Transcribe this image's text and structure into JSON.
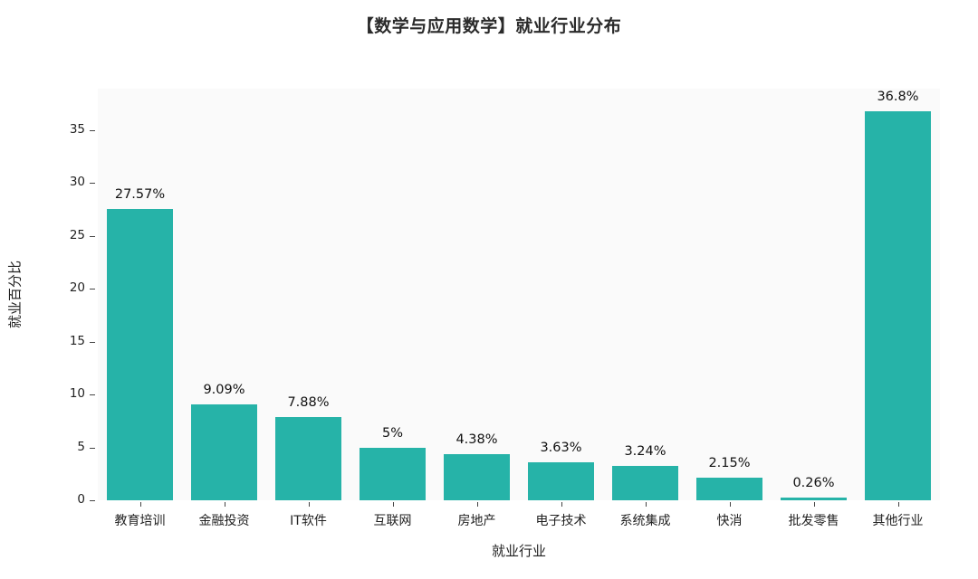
{
  "chart_data": {
    "type": "bar",
    "title": "【数学与应用数学】就业行业分布",
    "xlabel": "就业行业",
    "ylabel": "就业百分比",
    "categories": [
      "教育培训",
      "金融投资",
      "IT软件",
      "互联网",
      "房地产",
      "电子技术",
      "系统集成",
      "快消",
      "批发零售",
      "其他行业"
    ],
    "values": [
      27.57,
      9.09,
      7.88,
      5,
      4.38,
      3.63,
      3.24,
      2.15,
      0.26,
      36.8
    ],
    "value_labels": [
      "27.57%",
      "9.09%",
      "7.88%",
      "5%",
      "4.38%",
      "3.63%",
      "3.24%",
      "2.15%",
      "0.26%",
      "36.8%"
    ],
    "yticks": [
      0,
      5,
      10,
      15,
      20,
      25,
      30,
      35
    ],
    "ylim": [
      0,
      38.9
    ],
    "grid": false,
    "legend": "none",
    "bar_color": "#26b3a8",
    "plot_bg": "#fafafa"
  }
}
